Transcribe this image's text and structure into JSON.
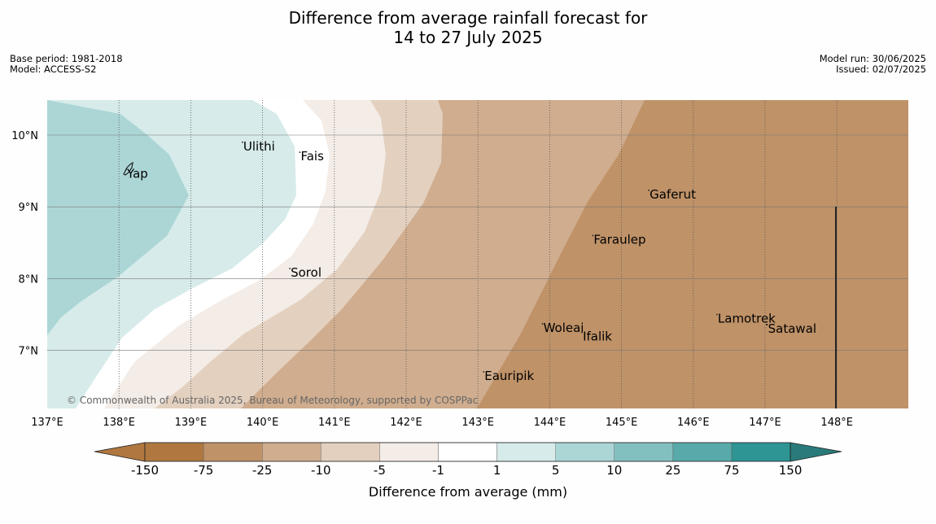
{
  "title_line1": "Difference from average rainfall forecast for",
  "title_line2": "14 to 27 July 2025",
  "meta_left": {
    "base_period": "Base period: 1981-2018",
    "model": "Model: ACCESS-S2"
  },
  "meta_right": {
    "model_run": "Model run: 30/06/2025",
    "issued": "Issued: 02/07/2025"
  },
  "map": {
    "lon_ticks": [
      "137°E",
      "138°E",
      "139°E",
      "140°E",
      "141°E",
      "142°E",
      "143°E",
      "144°E",
      "145°E",
      "146°E",
      "147°E",
      "148°E"
    ],
    "lat_ticks": [
      "10°N",
      "9°N",
      "8°N",
      "7°N"
    ],
    "places": [
      {
        "name": "Yap",
        "lon": 138.1,
        "lat": 9.52
      },
      {
        "name": "Ulithi",
        "lon": 139.72,
        "lat": 9.9
      },
      {
        "name": "Fais",
        "lon": 140.52,
        "lat": 9.76
      },
      {
        "name": "Gaferut",
        "lon": 145.38,
        "lat": 9.23
      },
      {
        "name": "Faraulep",
        "lon": 144.6,
        "lat": 8.6
      },
      {
        "name": "Sorol",
        "lon": 140.38,
        "lat": 8.14
      },
      {
        "name": "Lamotrek",
        "lon": 146.33,
        "lat": 7.5
      },
      {
        "name": "Satawal",
        "lon": 147.03,
        "lat": 7.36
      },
      {
        "name": "Woleai",
        "lon": 143.9,
        "lat": 7.37
      },
      {
        "name": "Ifalik",
        "lon": 144.45,
        "lat": 7.25
      },
      {
        "name": "Eauripik",
        "lon": 143.08,
        "lat": 6.7
      }
    ],
    "copyright": "© Commonwealth of Australia 2025, Bureau of Meteorology, supported by COSPPac"
  },
  "legend": {
    "ticks": [
      "-150",
      "-75",
      "-25",
      "-10",
      "-5",
      "-1",
      "1",
      "5",
      "10",
      "25",
      "75",
      "150"
    ],
    "colors": [
      "#b07840",
      "#bf9268",
      "#d0ad8e",
      "#e3d0bf",
      "#f4ece6",
      "#ffffff",
      "#d6ebea",
      "#acd6d6",
      "#82c0c0",
      "#58aaaa",
      "#2e9494",
      "#2a7a7a"
    ],
    "label": "Difference from average (mm)"
  }
}
